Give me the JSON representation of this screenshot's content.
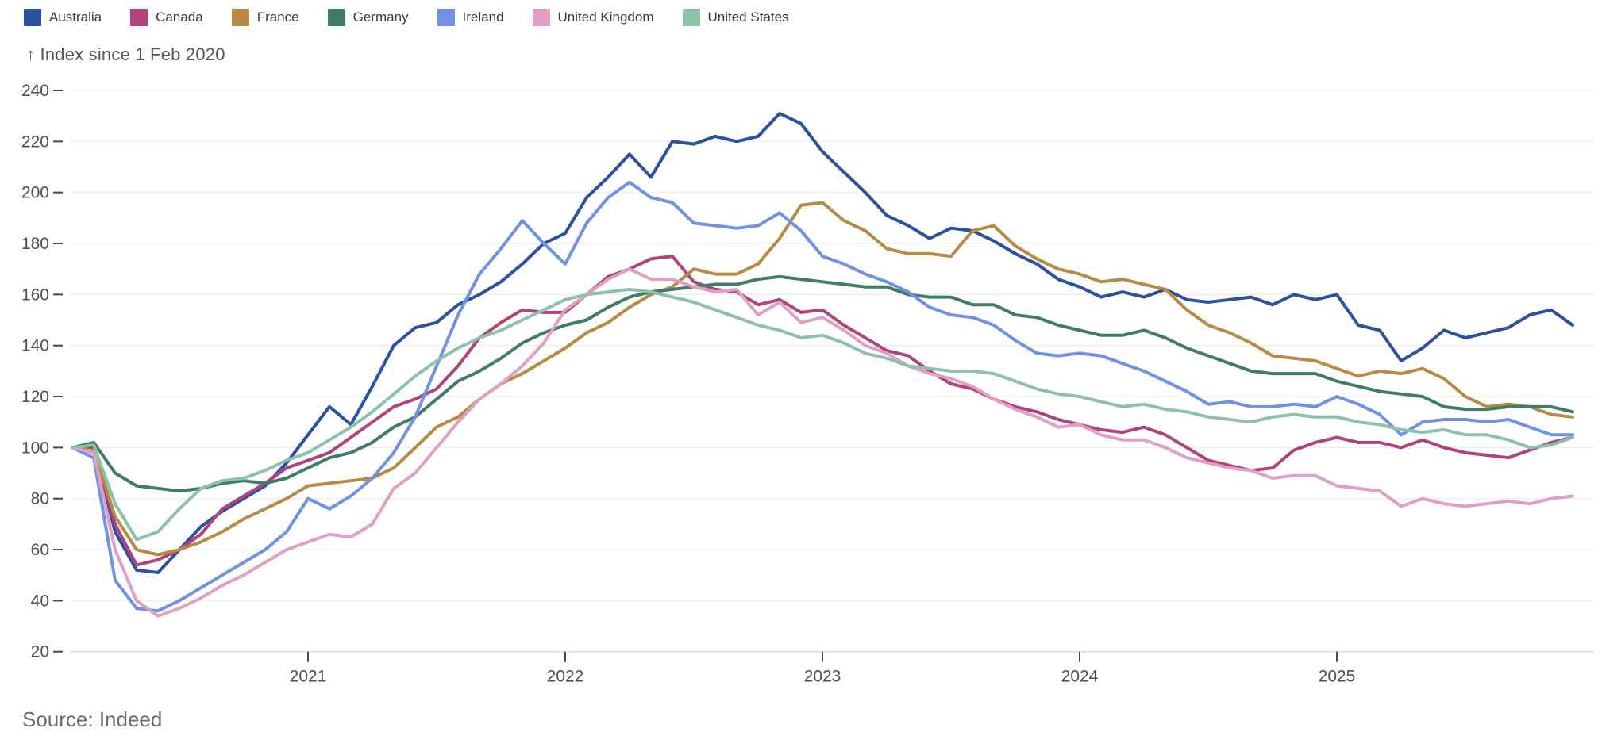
{
  "title": "↑ Index since 1 Feb 2020",
  "source": "Source: Indeed",
  "legend": {
    "items": [
      {
        "label": "Australia",
        "color": "#2c519e"
      },
      {
        "label": "Canada",
        "color": "#b1437c"
      },
      {
        "label": "France",
        "color": "#b78b44"
      },
      {
        "label": "Germany",
        "color": "#417c67"
      },
      {
        "label": "Ireland",
        "color": "#7092e5"
      },
      {
        "label": "United Kingdom",
        "color": "#dfa0c4"
      },
      {
        "label": "United States",
        "color": "#8dc1a8"
      }
    ]
  },
  "axes": {
    "y_ticks": [
      20,
      40,
      60,
      80,
      100,
      120,
      140,
      160,
      180,
      200,
      220,
      240
    ],
    "x_ticks": [
      "2021",
      "2022",
      "2023",
      "2024",
      "2025"
    ]
  },
  "colors": {
    "grid": "#ececec",
    "baseline": "#d6d6d6",
    "tick": "#4a4a4a",
    "axis_text": "#4f4f4f"
  },
  "chart_data": {
    "type": "line",
    "title": "Index since 1 Feb 2020",
    "xlabel": "",
    "ylabel": "Index since 1 Feb 2020",
    "ylim": [
      20,
      240
    ],
    "grid": "horizontal",
    "legend_position": "top-left",
    "x": [
      "2020-02",
      "2020-03",
      "2020-04",
      "2020-05",
      "2020-06",
      "2020-07",
      "2020-08",
      "2020-09",
      "2020-10",
      "2020-11",
      "2020-12",
      "2021-01",
      "2021-02",
      "2021-03",
      "2021-04",
      "2021-05",
      "2021-06",
      "2021-07",
      "2021-08",
      "2021-09",
      "2021-10",
      "2021-11",
      "2021-12",
      "2022-01",
      "2022-02",
      "2022-03",
      "2022-04",
      "2022-05",
      "2022-06",
      "2022-07",
      "2022-08",
      "2022-09",
      "2022-10",
      "2022-11",
      "2022-12",
      "2023-01",
      "2023-02",
      "2023-03",
      "2023-04",
      "2023-05",
      "2023-06",
      "2023-07",
      "2023-08",
      "2023-09",
      "2023-10",
      "2023-11",
      "2023-12",
      "2024-01",
      "2024-02",
      "2024-03",
      "2024-04",
      "2024-05",
      "2024-06",
      "2024-07",
      "2024-08",
      "2024-09",
      "2024-10",
      "2024-11",
      "2024-12",
      "2025-01",
      "2025-02",
      "2025-03",
      "2025-04",
      "2025-05",
      "2025-06",
      "2025-07",
      "2025-08",
      "2025-09",
      "2025-10",
      "2025-11",
      "2025-12"
    ],
    "series": [
      {
        "name": "Australia",
        "color": "#2c519e",
        "values": [
          100,
          100,
          67,
          52,
          51,
          60,
          69,
          75,
          80,
          85,
          94,
          105,
          116,
          109,
          124,
          140,
          147,
          149,
          156,
          160,
          165,
          172,
          180,
          184,
          198,
          206,
          215,
          206,
          220,
          219,
          222,
          220,
          222,
          231,
          227,
          216,
          208,
          200,
          191,
          187,
          182,
          186,
          185,
          181,
          176,
          172,
          166,
          163,
          159,
          161,
          159,
          162,
          158,
          157,
          158,
          159,
          156,
          160,
          158,
          160,
          148,
          146,
          134,
          139,
          146,
          143,
          145,
          147,
          152,
          154,
          148
        ]
      },
      {
        "name": "Canada",
        "color": "#b1437c",
        "values": [
          100,
          99,
          70,
          54,
          56,
          60,
          66,
          76,
          81,
          86,
          92,
          95,
          98,
          104,
          110,
          116,
          119,
          123,
          132,
          143,
          149,
          154,
          153,
          153,
          160,
          167,
          170,
          174,
          175,
          165,
          162,
          161,
          156,
          158,
          153,
          154,
          148,
          143,
          138,
          136,
          130,
          125,
          123,
          119,
          116,
          114,
          111,
          109,
          107,
          106,
          108,
          105,
          100,
          95,
          93,
          91,
          92,
          99,
          102,
          104,
          102,
          102,
          100,
          103,
          100,
          98,
          97,
          96,
          99,
          102,
          104
        ]
      },
      {
        "name": "France",
        "color": "#b78b44",
        "values": [
          100,
          99,
          73,
          60,
          58,
          60,
          63,
          67,
          72,
          76,
          80,
          85,
          86,
          87,
          88,
          92,
          100,
          108,
          112,
          119,
          125,
          129,
          134,
          139,
          145,
          149,
          155,
          160,
          163,
          170,
          168,
          168,
          172,
          182,
          195,
          196,
          189,
          185,
          178,
          176,
          176,
          175,
          185,
          187,
          179,
          174,
          170,
          168,
          165,
          166,
          164,
          162,
          154,
          148,
          145,
          141,
          136,
          135,
          134,
          131,
          128,
          130,
          129,
          131,
          127,
          120,
          116,
          117,
          116,
          113,
          112
        ]
      },
      {
        "name": "Germany",
        "color": "#417c67",
        "values": [
          100,
          102,
          90,
          85,
          84,
          83,
          84,
          86,
          87,
          86,
          88,
          92,
          96,
          98,
          102,
          108,
          112,
          119,
          126,
          130,
          135,
          141,
          145,
          148,
          150,
          155,
          159,
          161,
          162,
          163,
          164,
          164,
          166,
          167,
          166,
          165,
          164,
          163,
          163,
          160,
          159,
          159,
          156,
          156,
          152,
          151,
          148,
          146,
          144,
          144,
          146,
          143,
          139,
          136,
          133,
          130,
          129,
          129,
          129,
          126,
          124,
          122,
          121,
          120,
          116,
          115,
          115,
          116,
          116,
          116,
          114
        ]
      },
      {
        "name": "Ireland",
        "color": "#7092e5",
        "values": [
          100,
          96,
          48,
          37,
          36,
          40,
          45,
          50,
          55,
          60,
          67,
          80,
          76,
          81,
          88,
          98,
          112,
          132,
          152,
          168,
          178,
          189,
          180,
          172,
          188,
          198,
          204,
          198,
          196,
          188,
          187,
          186,
          187,
          192,
          185,
          175,
          172,
          168,
          165,
          161,
          155,
          152,
          151,
          148,
          142,
          137,
          136,
          137,
          136,
          133,
          130,
          126,
          122,
          117,
          118,
          116,
          116,
          117,
          116,
          120,
          117,
          113,
          105,
          110,
          111,
          111,
          110,
          111,
          108,
          105,
          105
        ]
      },
      {
        "name": "United Kingdom",
        "color": "#dfa0c4",
        "values": [
          100,
          98,
          60,
          40,
          34,
          37,
          41,
          46,
          50,
          55,
          60,
          63,
          66,
          65,
          70,
          84,
          90,
          100,
          110,
          119,
          125,
          132,
          141,
          154,
          160,
          166,
          170,
          166,
          166,
          163,
          161,
          162,
          152,
          157,
          149,
          151,
          146,
          140,
          137,
          132,
          129,
          127,
          124,
          119,
          115,
          112,
          108,
          109,
          105,
          103,
          103,
          100,
          96,
          94,
          92,
          91,
          88,
          89,
          89,
          85,
          84,
          83,
          77,
          80,
          78,
          77,
          78,
          79,
          78,
          80,
          81
        ]
      },
      {
        "name": "United States",
        "color": "#8dc1a8",
        "values": [
          100,
          101,
          78,
          64,
          67,
          76,
          84,
          87,
          88,
          91,
          95,
          98,
          103,
          108,
          114,
          121,
          128,
          134,
          139,
          143,
          146,
          150,
          154,
          158,
          160,
          161,
          162,
          161,
          159,
          157,
          154,
          151,
          148,
          146,
          143,
          144,
          141,
          137,
          135,
          132,
          131,
          130,
          130,
          129,
          126,
          123,
          121,
          120,
          118,
          116,
          117,
          115,
          114,
          112,
          111,
          110,
          112,
          113,
          112,
          112,
          110,
          109,
          107,
          106,
          107,
          105,
          105,
          103,
          100,
          101,
          104
        ]
      }
    ]
  }
}
